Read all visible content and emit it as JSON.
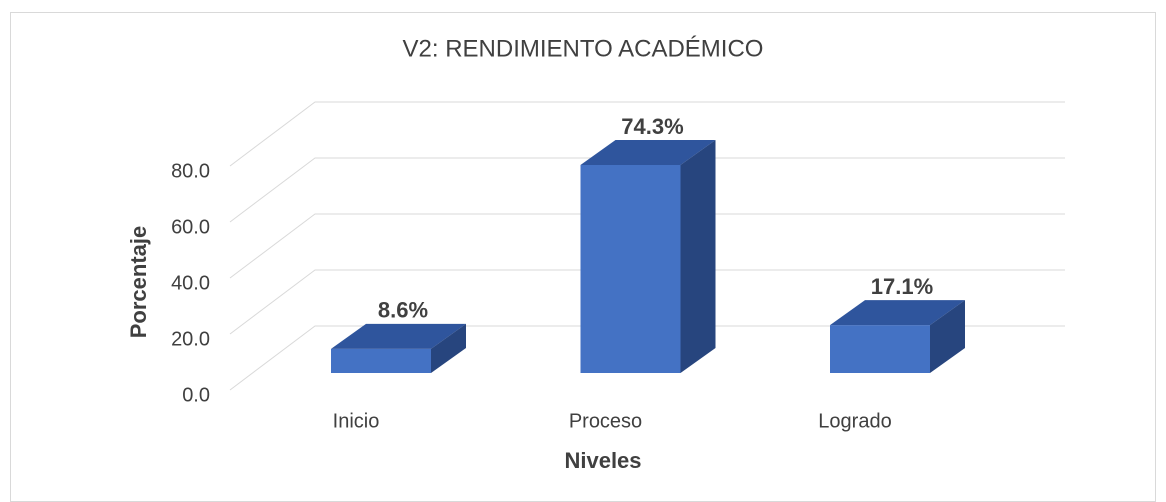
{
  "chart_data": {
    "type": "bar3d",
    "title": "V2: RENDIMIENTO ACADÉMICO",
    "x_label": "Niveles",
    "y_label": "Porcentaje",
    "categories": [
      "Inicio",
      "Proceso",
      "Logrado"
    ],
    "values": [
      8.6,
      74.3,
      17.1
    ],
    "value_labels": [
      "8.6%",
      "74.3%",
      "17.1%"
    ],
    "color": "#4472c4",
    "ylim": [
      0,
      80
    ],
    "yticks": [
      {
        "value": 0,
        "label": "0.0"
      },
      {
        "value": 20,
        "label": "20.0"
      },
      {
        "value": 40,
        "label": "40.0"
      },
      {
        "value": 60,
        "label": "60.0"
      },
      {
        "value": 80,
        "label": "80.0"
      }
    ],
    "grid": true
  }
}
